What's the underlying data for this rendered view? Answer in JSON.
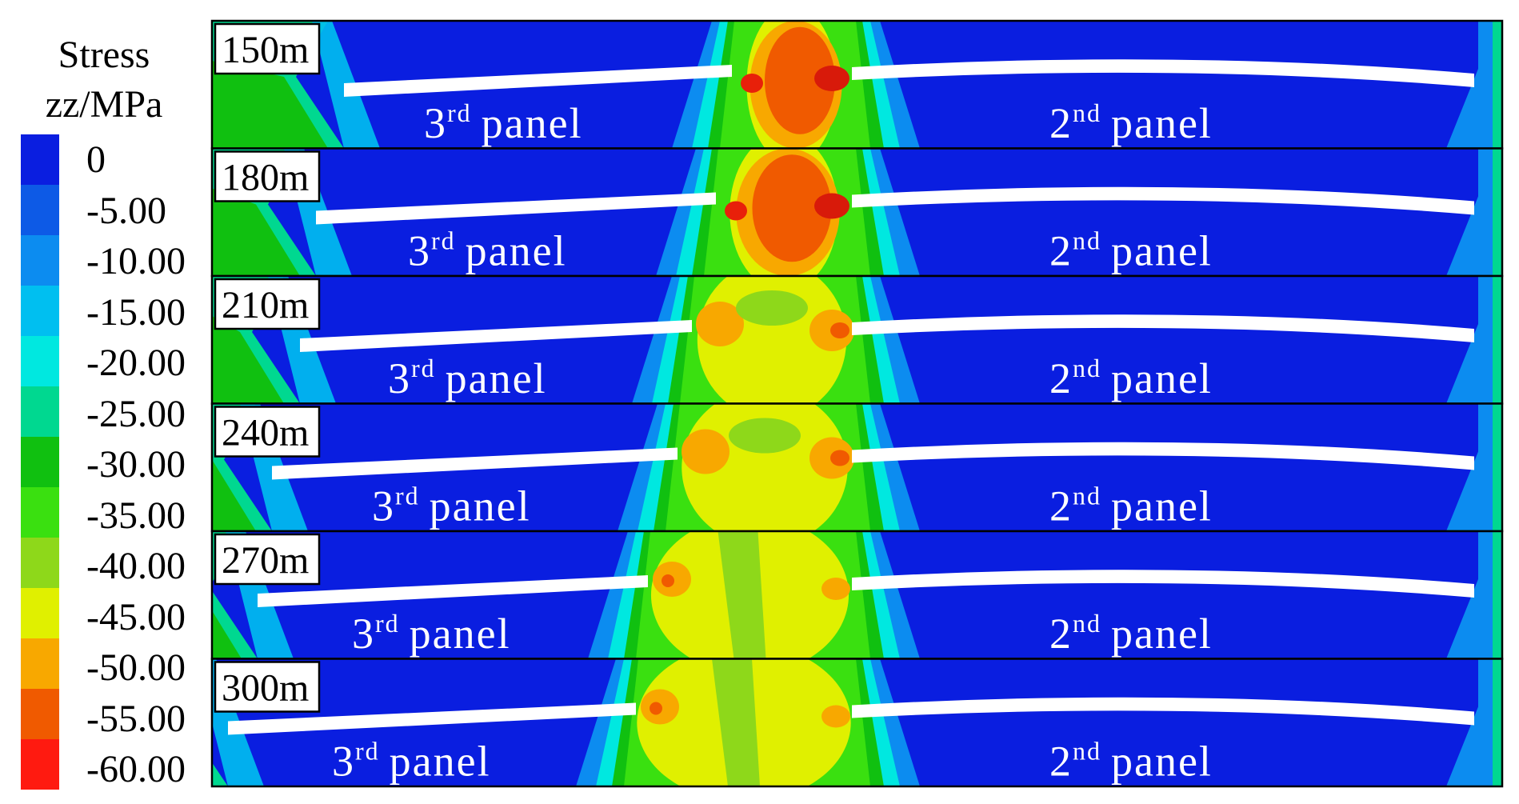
{
  "legend": {
    "title_line1": "Stress",
    "title_line2": "zz/MPa",
    "ticks": [
      "0",
      "-5.00",
      "-10.00",
      "-15.00",
      "-20.00",
      "-25.00",
      "-30.00",
      "-35.00",
      "-40.00",
      "-45.00",
      "-50.00",
      "-55.00",
      "-60.00"
    ],
    "colors": [
      "#0a1ee0",
      "#0d5ae6",
      "#0c8cf0",
      "#00bff0",
      "#00e8e0",
      "#00d890",
      "#10c010",
      "#3ae010",
      "#8ed81a",
      "#e0f000",
      "#f8a800",
      "#f05a00",
      "#ff1a10"
    ]
  },
  "panel_names": {
    "third_prefix": "3",
    "third_sup": "rd",
    "second_prefix": "2",
    "second_sup": "nd",
    "word": "panel"
  },
  "strips": [
    {
      "depth": "150m",
      "yellow_fraction": 0.35,
      "red_level": "high"
    },
    {
      "depth": "180m",
      "yellow_fraction": 0.45,
      "red_level": "high"
    },
    {
      "depth": "210m",
      "yellow_fraction": 0.75,
      "red_level": "medium"
    },
    {
      "depth": "240m",
      "yellow_fraction": 0.8,
      "red_level": "medium"
    },
    {
      "depth": "270m",
      "yellow_fraction": 0.85,
      "red_level": "low"
    },
    {
      "depth": "300m",
      "yellow_fraction": 0.9,
      "red_level": "low"
    }
  ]
}
